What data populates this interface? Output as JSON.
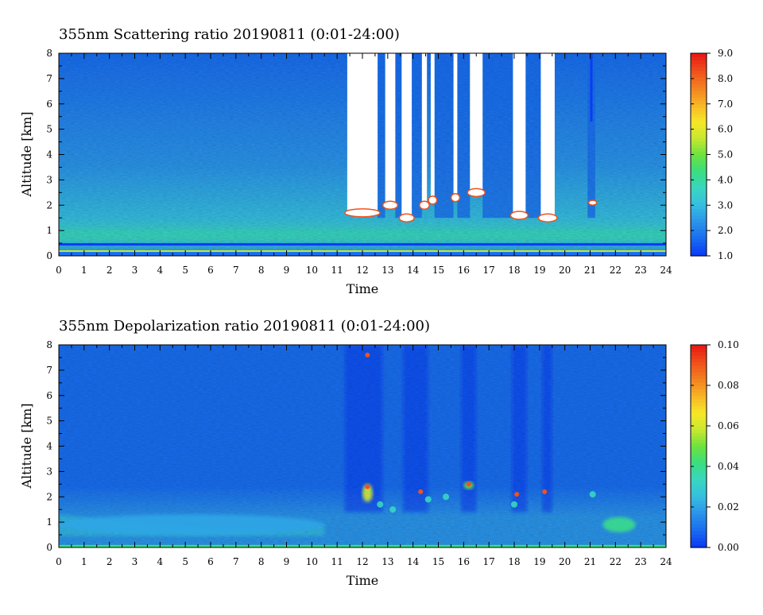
{
  "chart_data": [
    {
      "type": "heatmap",
      "title": "355nm Scattering ratio  20190811 (0:01-24:00)",
      "xlabel": "Time",
      "ylabel": "Altitude [km]",
      "xlim": [
        0,
        24
      ],
      "ylim": [
        0,
        8
      ],
      "x_ticks": [
        "0",
        "1",
        "2",
        "3",
        "4",
        "5",
        "6",
        "7",
        "8",
        "9",
        "10",
        "11",
        "12",
        "13",
        "14",
        "15",
        "16",
        "17",
        "18",
        "19",
        "20",
        "21",
        "22",
        "23",
        "24"
      ],
      "y_ticks": [
        "0",
        "1",
        "2",
        "3",
        "4",
        "5",
        "6",
        "7",
        "8"
      ],
      "colorbar": {
        "min": 1.0,
        "max": 9.0,
        "labels": [
          "1.0",
          "2.0",
          "3.0",
          "4.0",
          "5.0",
          "6.0",
          "7.0",
          "8.0",
          "9.0"
        ]
      },
      "masked_color": "#ffffff",
      "colormap": [
        "#0b3cf5",
        "#1a6ef0",
        "#2b95ea",
        "#36bfe0",
        "#39d6c0",
        "#3ade80",
        "#6ce23e",
        "#c8e830",
        "#f6e826",
        "#f7b625",
        "#f38321",
        "#f0521c",
        "#e81d14"
      ],
      "features": [
        {
          "name": "thick cloud (signal saturated)",
          "x0": 11.4,
          "x1": 12.6,
          "y0": 1.7,
          "y1": 8.0
        },
        {
          "name": "thick cloud (signal saturated)",
          "x0": 12.9,
          "x1": 13.3,
          "y0": 2.0,
          "y1": 8.0
        },
        {
          "name": "thick cloud (signal saturated)",
          "x0": 13.55,
          "x1": 13.95,
          "y0": 1.5,
          "y1": 8.0
        },
        {
          "name": "thick cloud (signal saturated)",
          "x0": 14.35,
          "x1": 14.55,
          "y0": 2.0,
          "y1": 8.0
        },
        {
          "name": "thick cloud (signal saturated)",
          "x0": 14.7,
          "x1": 14.85,
          "y0": 2.2,
          "y1": 8.0
        },
        {
          "name": "thick cloud (signal saturated)",
          "x0": 15.6,
          "x1": 15.75,
          "y0": 2.3,
          "y1": 8.0
        },
        {
          "name": "thick cloud (signal saturated)",
          "x0": 16.25,
          "x1": 16.75,
          "y0": 2.5,
          "y1": 8.0
        },
        {
          "name": "thick cloud (signal saturated)",
          "x0": 17.95,
          "x1": 18.45,
          "y0": 1.6,
          "y1": 8.0
        },
        {
          "name": "thick cloud (signal saturated)",
          "x0": 19.05,
          "x1": 19.6,
          "y0": 1.5,
          "y1": 8.0
        }
      ]
    },
    {
      "type": "heatmap",
      "title": "355nm Depolarization ratio  20190811 (0:01-24:00)",
      "xlabel": "Time",
      "ylabel": "Altitude [km]",
      "xlim": [
        0,
        24
      ],
      "ylim": [
        0,
        8
      ],
      "x_ticks": [
        "0",
        "1",
        "2",
        "3",
        "4",
        "5",
        "6",
        "7",
        "8",
        "9",
        "10",
        "11",
        "12",
        "13",
        "14",
        "15",
        "16",
        "17",
        "18",
        "19",
        "20",
        "21",
        "22",
        "23",
        "24"
      ],
      "y_ticks": [
        "0",
        "1",
        "2",
        "3",
        "4",
        "5",
        "6",
        "7",
        "8"
      ],
      "colorbar": {
        "min": 0.0,
        "max": 0.1,
        "labels": [
          "0.00",
          "0.02",
          "0.04",
          "0.06",
          "0.08",
          "0.10"
        ]
      },
      "colormap": [
        "#0b3cf5",
        "#1a6ef0",
        "#2b95ea",
        "#36bfe0",
        "#39d6c0",
        "#3ade80",
        "#6ce23e",
        "#c8e830",
        "#f6e826",
        "#f7b625",
        "#f38321",
        "#f0521c",
        "#e81d14"
      ],
      "features": [
        {
          "name": "near-surface aerosol layer",
          "x0": 0.0,
          "x1": 10.5,
          "y0": 0.5,
          "y1": 1.3,
          "value": 0.02
        },
        {
          "name": "cloud base depolarization",
          "x0": 12.0,
          "x1": 12.4,
          "y0": 1.8,
          "y1": 2.5,
          "value": 0.06
        },
        {
          "name": "cloud base depolarization",
          "x0": 16.0,
          "x1": 16.4,
          "y0": 2.3,
          "y1": 2.6,
          "value": 0.05
        },
        {
          "name": "elevated aerosol layer",
          "x0": 21.5,
          "x1": 22.8,
          "y0": 0.6,
          "y1": 1.2,
          "value": 0.04
        }
      ]
    }
  ]
}
